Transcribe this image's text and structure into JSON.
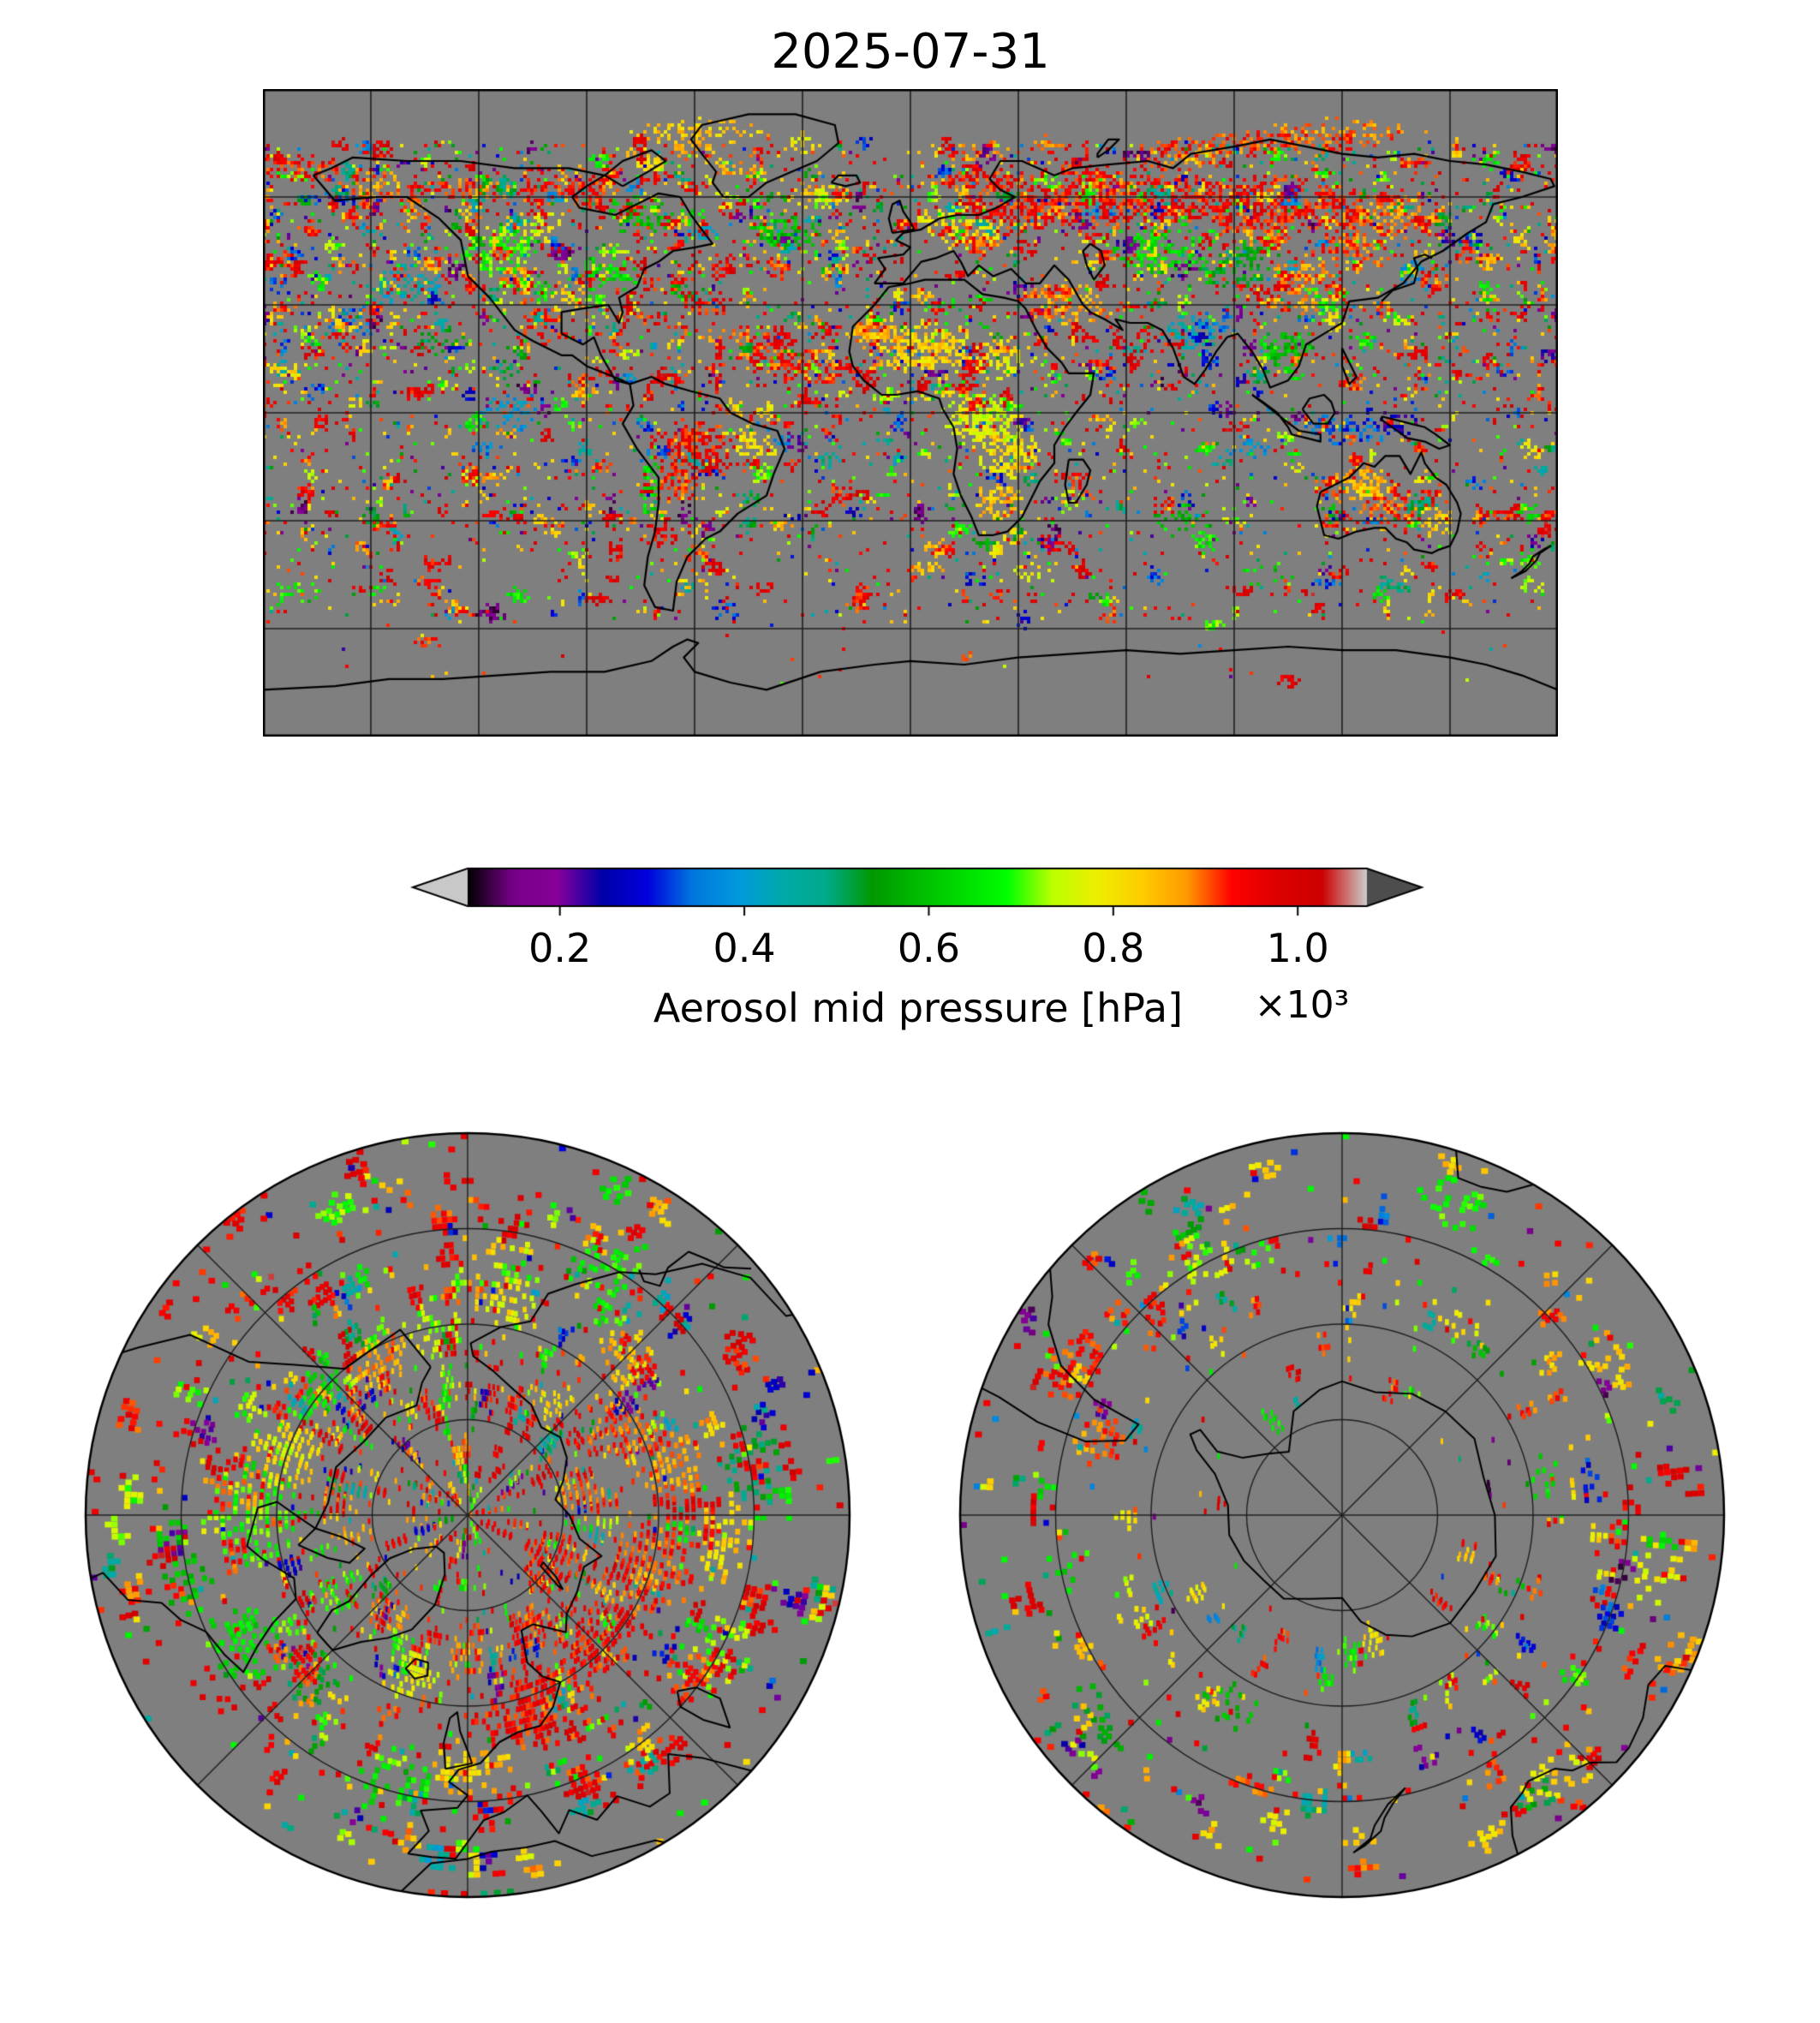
{
  "figure": {
    "title": "2025-07-31"
  },
  "colorbar": {
    "label": "Aerosol mid pressure [hPa]",
    "offset_label": "×10³",
    "ticks": [
      0.2,
      0.4,
      0.6,
      0.8,
      1.0
    ],
    "tick_labels": [
      "0.2",
      "0.4",
      "0.6",
      "0.8",
      "1.0"
    ],
    "under_arrow_color": "#c8c8c8",
    "over_arrow_color": "#4d4d4d"
  },
  "chart_data": {
    "type": "heatmap",
    "title": "2025-07-31",
    "date": "2025-07-31",
    "variable": "Aerosol mid pressure",
    "units": "hPa",
    "value_scale": "×10³",
    "value_range_hpa": [
      100,
      1075
    ],
    "colorbar_ticks_hpa": [
      200,
      400,
      600,
      800,
      1000
    ],
    "background_color": "#7f7f7f",
    "coastline_color": "#000000",
    "gridline_color": "#1f1f1f",
    "colormap": "nipy_spectral",
    "colormap_stops": [
      [
        0.0,
        0,
        0,
        0
      ],
      [
        0.05,
        119,
        0,
        136
      ],
      [
        0.1,
        136,
        0,
        153
      ],
      [
        0.15,
        0,
        0,
        170
      ],
      [
        0.2,
        0,
        0,
        221
      ],
      [
        0.25,
        0,
        119,
        221
      ],
      [
        0.3,
        0,
        153,
        221
      ],
      [
        0.35,
        0,
        170,
        170
      ],
      [
        0.4,
        0,
        170,
        136
      ],
      [
        0.45,
        0,
        153,
        0
      ],
      [
        0.5,
        0,
        187,
        0
      ],
      [
        0.55,
        0,
        221,
        0
      ],
      [
        0.6,
        0,
        255,
        0
      ],
      [
        0.65,
        187,
        255,
        0
      ],
      [
        0.7,
        238,
        238,
        0
      ],
      [
        0.75,
        255,
        204,
        0
      ],
      [
        0.8,
        255,
        153,
        0
      ],
      [
        0.85,
        255,
        0,
        0
      ],
      [
        0.9,
        221,
        0,
        0
      ],
      [
        0.95,
        204,
        0,
        0
      ],
      [
        1.0,
        204,
        204,
        204
      ]
    ],
    "panels": [
      {
        "name": "global-map",
        "projection": "equirectangular",
        "lon_range": [
          -180,
          180
        ],
        "lat_range": [
          -90,
          90
        ],
        "grid_spacing_deg": 30,
        "description": "Global aerosol mid pressure field for 2025-07-31: dense high-pressure aerosol (red, ~900-1000 hPa) over Siberia, eastern Europe, Brazil, Australia and the tropical Atlantic; yellow/orange (~750-850 hPa) over the Sahara, Middle East and southern Africa; green (~550-700 hPa) over central Africa, western North America and Kazakhstan; scattered blue/purple (~150-450 hPa) over India, Indonesia and the oceans; Antarctica and the far Southern Ocean mostly missing data (gray)."
      },
      {
        "name": "north-polar-map",
        "projection": "azimuthal-north",
        "lat_min": 30,
        "parallels_deg": [
          45,
          60,
          75
        ],
        "meridian_spacing_deg": 45,
        "description": "North polar view: dense coverage with a broad red (~900-1000 hPa) belt over Eurasia and the Arctic coast, mixed green/yellow/orange over Canada, Alaska and the North Atlantic, scattered blue patches."
      },
      {
        "name": "south-polar-map",
        "projection": "azimuthal-south",
        "lat_max": -30,
        "parallels_deg": [
          -45,
          -60,
          -75
        ],
        "meridian_spacing_deg": 45,
        "description": "South polar view: sparse scattered patches of red, yellow, green and blue around the mid-latitude rim, a small green/yellow cluster near the Ross Sea; interior Antarctica mostly missing data (gray)."
      }
    ]
  }
}
